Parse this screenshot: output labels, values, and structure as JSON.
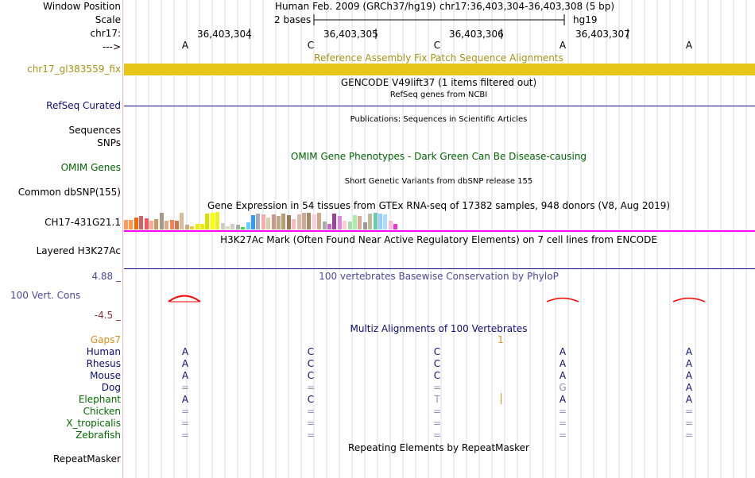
{
  "header": {
    "window_position_label": "Window Position",
    "scale_label": "Scale",
    "chrom_label": "chr17:",
    "strand_label": "--->",
    "assembly": "Human Feb. 2009 (GRCh37/hg19)",
    "position": "chr17:36,403,304-36,403,308 (5 bp)",
    "scale_text": "2 bases",
    "db": "hg19"
  },
  "ruler": {
    "ticks": [
      "36,403,304",
      "36,403,305",
      "36,403,306",
      "36,403,307"
    ]
  },
  "dna": [
    "A",
    "C",
    "C",
    "A",
    "A"
  ],
  "tracks": {
    "fix_patch": {
      "title": "Reference Assembly Fix Patch Sequence Alignments",
      "label": "chr17_gl383559_fix"
    },
    "gencode": {
      "title": "GENCODE V49lift37 (1 items filtered out)"
    },
    "refseq": {
      "subtitle": "RefSeq genes from NCBI",
      "label": "RefSeq Curated"
    },
    "publications": {
      "title": "Publications: Sequences in Scientific Articles",
      "label1": "Sequences",
      "label2": "SNPs"
    },
    "omim": {
      "title": "OMIM Gene Phenotypes - Dark Green Can Be Disease-causing",
      "label": "OMIM Genes"
    },
    "dbsnp": {
      "title": "Short Genetic Variants from dbSNP release 155",
      "label": "Common dbSNP(155)"
    },
    "gtex": {
      "title": "Gene Expression in 54 tissues from GTEx RNA-seq of 17382 samples, 948 donors (V8, Aug 2019)",
      "label": "CH17-431G21.1"
    },
    "h3k27ac": {
      "title": "H3K27Ac Mark (Often Found Near Active Regulatory Elements) on 7 cell lines from ENCODE",
      "label": "Layered H3K27Ac"
    },
    "phylop": {
      "title": "100 vertebrates Basewise Conservation by PhyloP",
      "label": "100 Vert. Cons",
      "max": "4.88 _",
      "min": "-4.5 _"
    },
    "multiz": {
      "title": "Multiz Alignments of 100 Vertebrates",
      "gaps_label": "Gaps7",
      "gap_marker": "1"
    },
    "repeatmasker": {
      "title": "Repeating Elements by RepeatMasker",
      "label": "RepeatMasker"
    }
  },
  "species": [
    {
      "name": "Human",
      "bases": [
        "A",
        "C",
        "C",
        "A",
        "A"
      ]
    },
    {
      "name": "Rhesus",
      "bases": [
        "A",
        "C",
        "C",
        "A",
        "A"
      ]
    },
    {
      "name": "Mouse",
      "bases": [
        "A",
        "C",
        "C",
        "A",
        "A"
      ]
    },
    {
      "name": "Dog",
      "bases": [
        "=",
        "=",
        "=",
        "G",
        "A"
      ]
    },
    {
      "name": "Elephant",
      "bases": [
        "A",
        "C",
        "T",
        "A",
        "A"
      ]
    },
    {
      "name": "Chicken",
      "bases": [
        "=",
        "=",
        "=",
        "=",
        "="
      ]
    },
    {
      "name": "X_tropicalis",
      "bases": [
        "=",
        "=",
        "=",
        "=",
        "="
      ]
    },
    {
      "name": "Zebrafish",
      "bases": [
        "=",
        "=",
        "=",
        "=",
        "="
      ]
    }
  ],
  "gtex_values": [
    0.55,
    0.55,
    0.7,
    0.75,
    0.65,
    0.5,
    0.6,
    0.95,
    0.5,
    0.55,
    0.5,
    0.95,
    0.25,
    0.2,
    0.3,
    0.3,
    0.9,
    0.95,
    1.0,
    0.35,
    0.2,
    0.3,
    0.25,
    0.15,
    0.4,
    0.8,
    0.9,
    0.85,
    0.7,
    0.85,
    0.75,
    0.9,
    0.8,
    0.6,
    0.85,
    0.95,
    0.95,
    0.85,
    0.95,
    0.45,
    0.3,
    0.9,
    0.75,
    0.5,
    0.45,
    0.8,
    0.75,
    0.4,
    0.9,
    0.95,
    0.9,
    0.85,
    0.5,
    0.3
  ],
  "gtex_colors": [
    "#ff9955",
    "#ff9955",
    "#ff6600",
    "#cc6666",
    "#ff5555",
    "#ffaa99",
    "#cc9966",
    "#aa9988",
    "#ddaa88",
    "#ff7f50",
    "#cc7755",
    "#ddbb99",
    "#ccaa88",
    "#eecc33",
    "#eeee00",
    "#eeee00",
    "#dddd00",
    "#ffff00",
    "#eeee22",
    "#cccccc",
    "#ddddbb",
    "#cccccc",
    "#aaaaaa",
    "#33dd33",
    "#66ccff",
    "#3399ff",
    "#aaaaaa",
    "#ffaaaa",
    "#ddccaa",
    "#cc9988",
    "#bbaa88",
    "#bb9977",
    "#997755",
    "#ffbbbb",
    "#ddbbaa",
    "#ccaa99",
    "#aa8866",
    "#ffccdd",
    "#ccaa88",
    "#aaaaaa",
    "#cc66cc",
    "#994499",
    "#dd88dd",
    "#ffcccc",
    "#aaddaa",
    "#aaeeaa",
    "#ddaa99",
    "#999999",
    "#bbbb99",
    "#66ccaa",
    "#99ccff",
    "#aaddff",
    "#ffbbdd",
    "#ee33cc"
  ],
  "colors": {
    "fix_bar": "#e6c619",
    "fix_label": "#a89215",
    "refseq_blue": "#0c0c78",
    "omim_green": "#006400",
    "gtex_magenta": "#ff00ff",
    "phylop_blue": "#4a4a9a",
    "phylop_red": "#ff0000",
    "gaps_orange": "#d9901c",
    "species_green": "#006c00"
  }
}
